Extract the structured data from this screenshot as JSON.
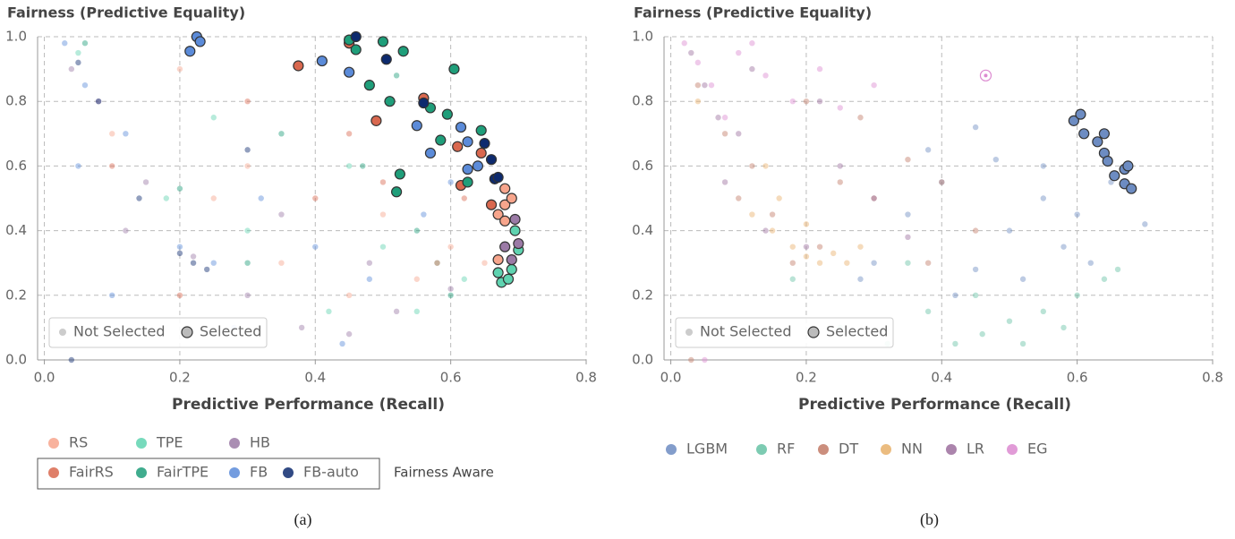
{
  "chart_data": [
    {
      "type": "scatter",
      "title": "Fairness (Predictive Equality)",
      "xlabel": "Predictive Performance (Recall)",
      "xlim": [
        -0.01,
        0.8
      ],
      "ylim": [
        0,
        1
      ],
      "xticks": [
        {
          "value": 0,
          "label": "0.0"
        },
        0.2,
        0.4,
        0.6,
        0.8
      ],
      "yticks": [
        {
          "value": 0,
          "label": "0.0"
        },
        0.2,
        0.4,
        0.6,
        0.8,
        {
          "value": 1,
          "label": "1.0"
        }
      ],
      "grid": true,
      "legend_items": [
        "Not Selected",
        "Selected"
      ],
      "fairness_aware_label": "Fairness Aware",
      "caption": "(a)",
      "series": [
        {
          "name": "RS",
          "color": "#f7a58c",
          "fairness_aware": false,
          "x": [
            0.1,
            0.25,
            0.35,
            0.45,
            0.55,
            0.6,
            0.3,
            0.5,
            0.65,
            0.2
          ],
          "y": [
            0.7,
            0.5,
            0.3,
            0.2,
            0.25,
            0.35,
            0.6,
            0.45,
            0.3,
            0.9
          ],
          "selected_x": [
            0.68,
            0.68,
            0.67,
            0.68,
            0.67,
            0.69
          ],
          "selected_y": [
            0.53,
            0.48,
            0.45,
            0.43,
            0.31,
            0.5
          ]
        },
        {
          "name": "TPE",
          "color": "#5fd3b0",
          "fairness_aware": false,
          "x": [
            0.05,
            0.18,
            0.3,
            0.42,
            0.5,
            0.58,
            0.62,
            0.25,
            0.45,
            0.55
          ],
          "y": [
            0.95,
            0.5,
            0.4,
            0.15,
            0.35,
            0.3,
            0.25,
            0.75,
            0.6,
            0.15
          ],
          "selected_x": [
            0.67,
            0.675,
            0.685,
            0.695,
            0.7,
            0.69
          ],
          "selected_y": [
            0.27,
            0.24,
            0.25,
            0.4,
            0.34,
            0.28
          ]
        },
        {
          "name": "HB",
          "color": "#9b7aa6",
          "fairness_aware": false,
          "x": [
            0.04,
            0.08,
            0.15,
            0.22,
            0.3,
            0.38,
            0.45,
            0.52,
            0.6,
            0.12,
            0.35,
            0.48
          ],
          "y": [
            0.9,
            0.8,
            0.55,
            0.32,
            0.2,
            0.1,
            0.08,
            0.15,
            0.22,
            0.4,
            0.45,
            0.3
          ],
          "selected_x": [
            0.68,
            0.7,
            0.695,
            0.69
          ],
          "selected_y": [
            0.35,
            0.36,
            0.435,
            0.31
          ]
        },
        {
          "name": "FairRS",
          "color": "#d9684f",
          "fairness_aware": true,
          "x": [
            0.1,
            0.3,
            0.4,
            0.5,
            0.58,
            0.62,
            0.2,
            0.45
          ],
          "y": [
            0.6,
            0.8,
            0.5,
            0.55,
            0.3,
            0.5,
            0.2,
            0.7
          ],
          "selected_x": [
            0.375,
            0.45,
            0.49,
            0.56,
            0.61,
            0.615,
            0.66,
            0.645
          ],
          "selected_y": [
            0.91,
            0.98,
            0.74,
            0.81,
            0.66,
            0.54,
            0.48,
            0.64
          ]
        },
        {
          "name": "FairTPE",
          "color": "#1f9e7a",
          "fairness_aware": true,
          "x": [
            0.06,
            0.2,
            0.35,
            0.47,
            0.55,
            0.6,
            0.3,
            0.52
          ],
          "y": [
            0.98,
            0.53,
            0.7,
            0.6,
            0.4,
            0.2,
            0.3,
            0.88
          ],
          "selected_x": [
            0.45,
            0.46,
            0.5,
            0.53,
            0.48,
            0.51,
            0.605,
            0.595,
            0.585,
            0.645,
            0.525,
            0.52,
            0.625,
            0.57
          ],
          "selected_y": [
            0.99,
            0.96,
            0.985,
            0.955,
            0.85,
            0.8,
            0.9,
            0.76,
            0.68,
            0.71,
            0.575,
            0.52,
            0.55,
            0.78
          ]
        },
        {
          "name": "FB",
          "color": "#5b8bd9",
          "fairness_aware": true,
          "x": [
            0.03,
            0.06,
            0.12,
            0.2,
            0.25,
            0.32,
            0.4,
            0.48,
            0.56,
            0.1,
            0.28,
            0.44,
            0.6,
            0.05
          ],
          "y": [
            0.98,
            0.85,
            0.7,
            0.35,
            0.3,
            0.5,
            0.35,
            0.25,
            0.45,
            0.2,
            0.1,
            0.05,
            0.55,
            0.6
          ],
          "selected_x": [
            0.225,
            0.23,
            0.215,
            0.41,
            0.45,
            0.55,
            0.57,
            0.615,
            0.625,
            0.625,
            0.64
          ],
          "selected_y": [
            1,
            0.985,
            0.955,
            0.925,
            0.89,
            0.725,
            0.64,
            0.72,
            0.675,
            0.59,
            0.6
          ]
        },
        {
          "name": "FB-auto",
          "color": "#0d2a6e",
          "fairness_aware": true,
          "x": [
            0.05,
            0.08,
            0.2,
            0.22,
            0.24,
            0.14,
            0.04,
            0.3
          ],
          "y": [
            0.92,
            0.8,
            0.33,
            0.3,
            0.28,
            0.5,
            0,
            0.65
          ],
          "selected_x": [
            0.46,
            0.505,
            0.56,
            0.65,
            0.66,
            0.665,
            0.67
          ],
          "selected_y": [
            1,
            0.93,
            0.795,
            0.67,
            0.62,
            0.56,
            0.565
          ]
        }
      ]
    },
    {
      "type": "scatter",
      "title": "Fairness (Predictive Equality)",
      "xlabel": "Predictive Performance (Recall)",
      "xlim": [
        -0.01,
        0.8
      ],
      "ylim": [
        0,
        1
      ],
      "xticks": [
        {
          "value": 0,
          "label": "0.0"
        },
        0.2,
        0.4,
        0.6,
        0.8
      ],
      "yticks": [
        {
          "value": 0,
          "label": "0.0"
        },
        0.2,
        0.4,
        0.6,
        0.8,
        {
          "value": 1,
          "label": "1.0"
        }
      ],
      "grid": true,
      "legend_items": [
        "Not Selected",
        "Selected"
      ],
      "caption": "(b)",
      "series": [
        {
          "name": "LGBM",
          "color": "#6d8cc2",
          "x": [
            0.3,
            0.35,
            0.4,
            0.45,
            0.5,
            0.55,
            0.6,
            0.65,
            0.7,
            0.38,
            0.48,
            0.58,
            0.42,
            0.52,
            0.28,
            0.62,
            0.45,
            0.55
          ],
          "y": [
            0.3,
            0.45,
            0.55,
            0.28,
            0.4,
            0.5,
            0.45,
            0.55,
            0.42,
            0.65,
            0.62,
            0.35,
            0.2,
            0.25,
            0.25,
            0.3,
            0.72,
            0.6
          ],
          "selected_x": [
            0.595,
            0.605,
            0.61,
            0.63,
            0.64,
            0.64,
            0.645,
            0.655,
            0.67,
            0.675,
            0.67,
            0.68
          ],
          "selected_y": [
            0.74,
            0.76,
            0.7,
            0.675,
            0.7,
            0.64,
            0.615,
            0.57,
            0.59,
            0.6,
            0.545,
            0.53
          ]
        },
        {
          "name": "RF",
          "color": "#66c2a5",
          "x": [
            0.18,
            0.25,
            0.32,
            0.38,
            0.42,
            0.46,
            0.5,
            0.55,
            0.6,
            0.64,
            0.66,
            0.35,
            0.45,
            0.52,
            0.58
          ],
          "y": [
            0.25,
            0.1,
            0.05,
            0.15,
            0.05,
            0.08,
            0.12,
            0.15,
            0.2,
            0.25,
            0.28,
            0.3,
            0.2,
            0.05,
            0.1
          ],
          "selected_x": [],
          "selected_y": []
        },
        {
          "name": "DT",
          "color": "#c27a66",
          "x": [
            0.04,
            0.08,
            0.12,
            0.15,
            0.2,
            0.25,
            0.3,
            0.35,
            0.4,
            0.45,
            0.1,
            0.18,
            0.28,
            0.38,
            0.22,
            0.03
          ],
          "y": [
            0.85,
            0.7,
            0.6,
            0.45,
            0.8,
            0.55,
            0.5,
            0.62,
            0.55,
            0.4,
            0.5,
            0.3,
            0.75,
            0.3,
            0.35,
            0
          ],
          "selected_x": [],
          "selected_y": []
        },
        {
          "name": "NN",
          "color": "#e8b06a",
          "x": [
            0.12,
            0.15,
            0.18,
            0.2,
            0.22,
            0.24,
            0.26,
            0.16,
            0.2,
            0.14,
            0.28,
            0.04
          ],
          "y": [
            0.45,
            0.4,
            0.35,
            0.32,
            0.3,
            0.33,
            0.3,
            0.5,
            0.42,
            0.6,
            0.35,
            0.8
          ],
          "selected_x": [],
          "selected_y": []
        },
        {
          "name": "LR",
          "color": "#9c6f9e",
          "x": [
            0.03,
            0.05,
            0.07,
            0.1,
            0.14,
            0.2,
            0.25,
            0.3,
            0.12,
            0.08,
            0.22,
            0.35
          ],
          "y": [
            0.95,
            0.85,
            0.75,
            0.7,
            0.4,
            0.35,
            0.6,
            0.5,
            0.9,
            0.55,
            0.8,
            0.38
          ],
          "selected_x": [],
          "selected_y": []
        },
        {
          "name": "EG",
          "color": "#dc8ad0",
          "selected_marker": "ring",
          "x": [
            0.02,
            0.04,
            0.06,
            0.1,
            0.14,
            0.18,
            0.22,
            0.08,
            0.25,
            0.12,
            0.3,
            0.05
          ],
          "y": [
            0.98,
            0.92,
            0.85,
            0.95,
            0.88,
            0.8,
            0.9,
            0.75,
            0.78,
            0.98,
            0.85,
            0
          ],
          "selected_x": [
            0.465
          ],
          "selected_y": [
            0.88
          ]
        }
      ]
    }
  ]
}
